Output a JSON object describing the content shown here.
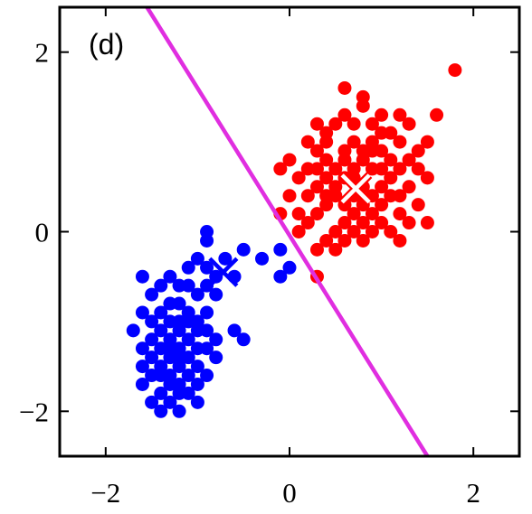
{
  "chart_data": {
    "type": "scatter",
    "annotations": [
      {
        "text": "(d)",
        "position": "top-left"
      }
    ],
    "xlim": [
      -2.5,
      2.5
    ],
    "ylim": [
      -2.5,
      2.5
    ],
    "xticks": [
      -2,
      0,
      2
    ],
    "yticks": [
      -2,
      0,
      2
    ],
    "xtick_labels": [
      "−2",
      "0",
      "2"
    ],
    "ytick_labels": [
      "−2",
      "0",
      "2"
    ],
    "grid": false,
    "legend": "none",
    "colors": {
      "cluster_1": "#ff0000",
      "cluster_2": "#0000ff",
      "boundary": "#e02ee0",
      "centroid_1": "#ffffff",
      "centroid_2": "#0000ff"
    },
    "series": [
      {
        "color": "#ff0000",
        "marker": "circle",
        "points": [
          [
            0.8,
            0.5
          ],
          [
            0.6,
            0.9
          ],
          [
            1.0,
            0.3
          ],
          [
            0.4,
            0.6
          ],
          [
            0.9,
            1.0
          ],
          [
            1.2,
            0.7
          ],
          [
            0.3,
            0.9
          ],
          [
            0.7,
            0.2
          ],
          [
            1.1,
            1.1
          ],
          [
            0.5,
            1.2
          ],
          [
            0.2,
            0.4
          ],
          [
            1.3,
            0.5
          ],
          [
            0.9,
            0.0
          ],
          [
            0.6,
            -0.1
          ],
          [
            1.0,
            1.3
          ],
          [
            0.4,
            1.1
          ],
          [
            1.4,
            0.9
          ],
          [
            0.1,
            0.6
          ],
          [
            0.8,
            0.8
          ],
          [
            1.2,
            0.2
          ],
          [
            0.5,
            0.4
          ],
          [
            0.7,
            1.0
          ],
          [
            1.1,
            0.6
          ],
          [
            0.3,
            0.2
          ],
          [
            0.9,
            0.4
          ],
          [
            1.5,
            0.6
          ],
          [
            0.0,
            0.8
          ],
          [
            0.6,
            0.6
          ],
          [
            1.3,
            1.2
          ],
          [
            0.8,
            1.4
          ],
          [
            0.4,
            -0.1
          ],
          [
            1.0,
            0.9
          ],
          [
            0.2,
            1.0
          ],
          [
            1.2,
            1.0
          ],
          [
            0.7,
            0.7
          ],
          [
            0.5,
            0.0
          ],
          [
            1.4,
            0.3
          ],
          [
            0.9,
            1.2
          ],
          [
            0.3,
            0.5
          ],
          [
            1.1,
            0.0
          ],
          [
            0.6,
            1.3
          ],
          [
            0.1,
            0.2
          ],
          [
            1.0,
            0.5
          ],
          [
            0.8,
            0.1
          ],
          [
            1.3,
            0.8
          ],
          [
            0.4,
            0.8
          ],
          [
            0.7,
            0.4
          ],
          [
            1.5,
            1.0
          ],
          [
            0.2,
            0.7
          ],
          [
            0.9,
            0.7
          ],
          [
            1.1,
            0.4
          ],
          [
            0.5,
            0.7
          ],
          [
            0.6,
            0.3
          ],
          [
            1.2,
            1.3
          ],
          [
            0.3,
            1.2
          ],
          [
            0.8,
            -0.1
          ],
          [
            1.0,
            0.1
          ],
          [
            0.4,
            0.3
          ],
          [
            1.4,
            0.7
          ],
          [
            0.7,
            1.2
          ],
          [
            0.6,
            1.6
          ],
          [
            1.8,
            1.8
          ],
          [
            0.8,
            1.5
          ],
          [
            1.6,
            1.3
          ],
          [
            -0.1,
            0.7
          ],
          [
            0.0,
            0.4
          ],
          [
            -0.1,
            0.2
          ],
          [
            0.1,
            0.0
          ],
          [
            0.3,
            -0.2
          ],
          [
            0.5,
            -0.2
          ],
          [
            0.7,
            0.0
          ],
          [
            1.2,
            -0.1
          ],
          [
            1.5,
            0.1
          ],
          [
            0.9,
            0.2
          ],
          [
            1.3,
            0.1
          ],
          [
            0.2,
            0.1
          ],
          [
            0.4,
            1.0
          ],
          [
            1.1,
            0.8
          ],
          [
            0.6,
            0.8
          ],
          [
            0.8,
            0.3
          ],
          [
            1.0,
            0.7
          ],
          [
            0.5,
            0.5
          ],
          [
            0.7,
            0.6
          ],
          [
            0.9,
            0.9
          ],
          [
            1.2,
            0.4
          ],
          [
            0.3,
            0.7
          ],
          [
            0.6,
            0.1
          ],
          [
            1.0,
            1.1
          ],
          [
            0.4,
            0.4
          ],
          [
            0.8,
            0.9
          ],
          [
            0.3,
            -0.5
          ]
        ]
      },
      {
        "color": "#0000ff",
        "marker": "circle",
        "points": [
          [
            -1.3,
            -1.2
          ],
          [
            -1.1,
            -1.4
          ],
          [
            -1.5,
            -1.0
          ],
          [
            -1.2,
            -1.7
          ],
          [
            -1.4,
            -1.5
          ],
          [
            -1.0,
            -1.1
          ],
          [
            -1.3,
            -0.8
          ],
          [
            -1.6,
            -1.3
          ],
          [
            -1.2,
            -1.0
          ],
          [
            -1.4,
            -1.8
          ],
          [
            -1.1,
            -0.9
          ],
          [
            -1.5,
            -1.6
          ],
          [
            -1.0,
            -1.5
          ],
          [
            -1.3,
            -1.3
          ],
          [
            -1.2,
            -2.0
          ],
          [
            -1.6,
            -0.9
          ],
          [
            -1.4,
            -1.1
          ],
          [
            -0.9,
            -1.3
          ],
          [
            -1.2,
            -1.5
          ],
          [
            -1.5,
            -1.9
          ],
          [
            -1.1,
            -1.6
          ],
          [
            -1.3,
            -1.9
          ],
          [
            -1.0,
            -0.7
          ],
          [
            -1.4,
            -0.6
          ],
          [
            -1.6,
            -0.5
          ],
          [
            -1.2,
            -0.6
          ],
          [
            -0.9,
            -0.9
          ],
          [
            -0.8,
            -1.2
          ],
          [
            -1.1,
            -1.2
          ],
          [
            -1.5,
            -1.2
          ],
          [
            -1.3,
            -1.6
          ],
          [
            -1.2,
            -1.3
          ],
          [
            -1.4,
            -1.3
          ],
          [
            -1.0,
            -1.3
          ],
          [
            -1.3,
            -1.0
          ],
          [
            -1.6,
            -1.7
          ],
          [
            -1.1,
            -1.8
          ],
          [
            -1.2,
            -1.1
          ],
          [
            -1.0,
            -1.7
          ],
          [
            -1.5,
            -1.4
          ],
          [
            -0.9,
            -0.6
          ],
          [
            -1.0,
            -0.3
          ],
          [
            -0.8,
            -0.5
          ],
          [
            -1.1,
            -0.4
          ],
          [
            -0.9,
            -0.1
          ],
          [
            -0.7,
            -0.3
          ],
          [
            -0.6,
            -0.5
          ],
          [
            -0.8,
            -0.7
          ],
          [
            -0.6,
            -1.1
          ],
          [
            -0.9,
            -1.6
          ],
          [
            -0.8,
            -1.4
          ],
          [
            -0.5,
            -1.2
          ],
          [
            -1.2,
            -1.8
          ],
          [
            -1.4,
            -2.0
          ],
          [
            -0.9,
            0.0
          ],
          [
            -0.3,
            -0.3
          ],
          [
            -0.1,
            -0.2
          ],
          [
            -0.1,
            -0.5
          ],
          [
            0.0,
            -0.4
          ],
          [
            -0.5,
            -0.2
          ],
          [
            -1.3,
            -1.4
          ],
          [
            -1.1,
            -1.0
          ],
          [
            -1.4,
            -0.9
          ],
          [
            -1.0,
            -1.9
          ],
          [
            -1.3,
            -0.5
          ],
          [
            -1.5,
            -0.7
          ],
          [
            -1.7,
            -1.1
          ],
          [
            -1.6,
            -1.5
          ],
          [
            -1.1,
            -0.6
          ],
          [
            -0.9,
            -0.4
          ],
          [
            -1.2,
            -0.8
          ],
          [
            -1.3,
            -1.7
          ],
          [
            -1.0,
            -1.0
          ],
          [
            -1.2,
            -1.4
          ],
          [
            -1.4,
            -1.6
          ],
          [
            -0.9,
            -1.1
          ]
        ]
      }
    ],
    "centroids": [
      {
        "x": 0.72,
        "y": 0.48,
        "marker": "x",
        "color": "#ffffff"
      },
      {
        "x": -0.72,
        "y": -0.45,
        "marker": "x",
        "color": "#0000ff"
      }
    ],
    "boundary_line": {
      "x": [
        -1.55,
        1.5
      ],
      "y": [
        2.5,
        -2.5
      ],
      "color": "#e02ee0"
    }
  }
}
